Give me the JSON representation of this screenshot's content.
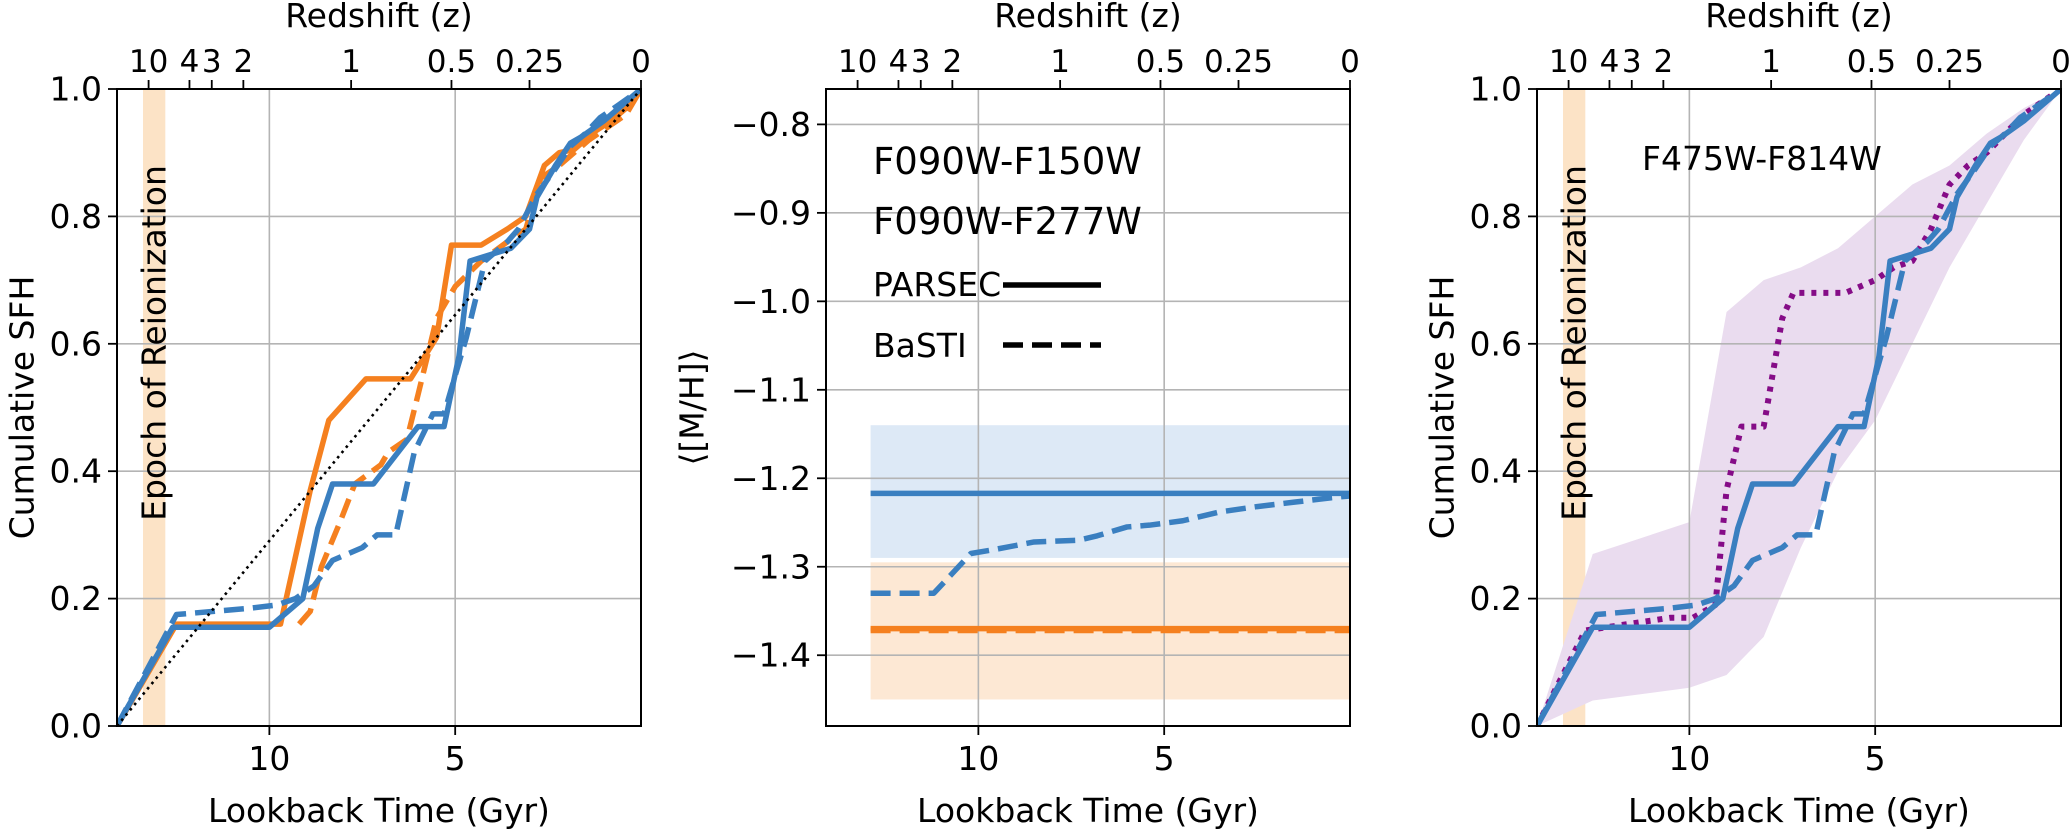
{
  "colors": {
    "blue": "#3a7fc0",
    "orange": "#f5801f",
    "purple": "#850c87",
    "reion": "#fce3c6",
    "blue_band": "#dde9f6",
    "orange_band": "#fde8d4",
    "purple_band": "#eadcef",
    "grid": "#b4b4b4"
  },
  "chart_data": [
    {
      "type": "line",
      "xlabel": "Lookback Time (Gyr)",
      "ylabel": "Cumulative SFH",
      "top_axis_label": "Redshift (z)",
      "xlim": [
        14.1,
        0
      ],
      "ylim": [
        0,
        1
      ],
      "x_ticks": [
        10,
        5
      ],
      "y_ticks": [
        0.0,
        0.2,
        0.4,
        0.6,
        0.8,
        1.0
      ],
      "top_ticks": [
        {
          "label": "10",
          "t": 13.25
        },
        {
          "label": "4",
          "t": 12.15
        },
        {
          "label": "3",
          "t": 11.55
        },
        {
          "label": "2",
          "t": 10.7
        },
        {
          "label": "1",
          "t": 7.8
        },
        {
          "label": "0.5",
          "t": 5.1
        },
        {
          "label": "0.25",
          "t": 3.0
        },
        {
          "label": "0",
          "t": 0
        }
      ],
      "annotation": {
        "text": "Epoch of Reionization",
        "t_range": [
          13.4,
          12.8
        ]
      },
      "series": [
        {
          "color_key": "orange",
          "style": "solid",
          "x": [
            14.1,
            12.9,
            12.5,
            10.3,
            9.7,
            8.9,
            8.4,
            7.4,
            6.2,
            5.5,
            5.1,
            4.3,
            3.6,
            3.1,
            2.6,
            2.2,
            1.8,
            1.2,
            0.8,
            0.4,
            0
          ],
          "y": [
            0.0,
            0.12,
            0.16,
            0.16,
            0.16,
            0.37,
            0.48,
            0.545,
            0.545,
            0.61,
            0.755,
            0.755,
            0.78,
            0.8,
            0.88,
            0.9,
            0.905,
            0.935,
            0.95,
            0.97,
            1.0
          ]
        },
        {
          "color_key": "orange",
          "style": "dashed",
          "x": [
            9.2,
            8.9,
            8.6,
            8.1,
            7.7,
            7.0,
            6.8,
            6.3,
            6.0,
            5.5,
            5.0,
            4.3,
            3.6,
            3.1,
            2.7,
            2.2,
            1.8,
            1.4,
            0.9,
            0.4,
            0
          ],
          "y": [
            0.16,
            0.18,
            0.25,
            0.32,
            0.38,
            0.41,
            0.43,
            0.45,
            0.52,
            0.64,
            0.69,
            0.73,
            0.76,
            0.78,
            0.86,
            0.88,
            0.9,
            0.92,
            0.94,
            0.96,
            1.0
          ]
        },
        {
          "color_key": "blue",
          "style": "solid",
          "x": [
            14.1,
            12.6,
            10.0,
            9.1,
            8.7,
            8.3,
            7.2,
            6.8,
            6.0,
            5.3,
            4.9,
            4.6,
            3.5,
            3.0,
            2.8,
            2.3,
            1.9,
            1.6,
            1.0,
            0.6,
            0
          ],
          "y": [
            0.0,
            0.155,
            0.155,
            0.2,
            0.31,
            0.38,
            0.38,
            0.41,
            0.47,
            0.47,
            0.58,
            0.73,
            0.75,
            0.78,
            0.83,
            0.88,
            0.915,
            0.925,
            0.95,
            0.97,
            1.0
          ]
        },
        {
          "color_key": "blue",
          "style": "dashed",
          "x": [
            14.1,
            12.5,
            10.5,
            9.8,
            9.3,
            8.8,
            8.3,
            7.5,
            7.1,
            6.6,
            6.1,
            5.6,
            5.3,
            4.7,
            4.2,
            3.6,
            3.3,
            2.8,
            2.3,
            1.9,
            1.5,
            1.1,
            0.6,
            0
          ],
          "y": [
            0.0,
            0.175,
            0.185,
            0.19,
            0.2,
            0.22,
            0.26,
            0.28,
            0.3,
            0.3,
            0.43,
            0.49,
            0.49,
            0.61,
            0.73,
            0.76,
            0.78,
            0.835,
            0.875,
            0.91,
            0.93,
            0.955,
            0.975,
            1.0
          ]
        },
        {
          "color_key": "black",
          "style": "dotted",
          "x": [
            14.1,
            0
          ],
          "y": [
            0.0,
            1.0
          ]
        }
      ]
    },
    {
      "type": "line",
      "xlabel": "Lookback Time (Gyr)",
      "ylabel": "⟨[M/H]⟩",
      "top_axis_label": "Redshift (z)",
      "xlim": [
        14.1,
        0
      ],
      "ylim": [
        -1.48,
        -0.76
      ],
      "x_ticks": [
        10,
        5
      ],
      "y_ticks": [
        -0.8,
        -0.9,
        -1.0,
        -1.1,
        -1.2,
        -1.3,
        -1.4
      ],
      "top_ticks": [
        {
          "label": "10",
          "t": 13.25
        },
        {
          "label": "4",
          "t": 12.15
        },
        {
          "label": "3",
          "t": 11.55
        },
        {
          "label": "2",
          "t": 10.7
        },
        {
          "label": "1",
          "t": 7.8
        },
        {
          "label": "0.5",
          "t": 5.1
        },
        {
          "label": "0.25",
          "t": 3.0
        },
        {
          "label": "0",
          "t": 0
        }
      ],
      "legend": [
        {
          "text": "F090W-F150W",
          "color_key": "blue"
        },
        {
          "text": "F090W-F277W",
          "color_key": "orange"
        },
        {
          "text": "PARSEC",
          "line": "solid"
        },
        {
          "text": "BaSTI",
          "line": "dashed"
        }
      ],
      "bands": [
        {
          "color_key": "blue_band",
          "x": [
            12.9,
            0
          ],
          "y_range": [
            -1.29,
            -1.14
          ]
        },
        {
          "color_key": "orange_band",
          "x": [
            12.9,
            0
          ],
          "y_range": [
            -1.45,
            -1.295
          ]
        }
      ],
      "series": [
        {
          "color_key": "blue",
          "style": "solid",
          "x": [
            12.9,
            0
          ],
          "y": [
            -1.217,
            -1.217
          ]
        },
        {
          "color_key": "blue",
          "style": "dashed",
          "x": [
            12.9,
            11.2,
            10.2,
            9.5,
            8.5,
            7.3,
            6.8,
            6.0,
            5.4,
            4.5,
            3.5,
            2.5,
            1.5,
            0.5,
            0
          ],
          "y": [
            -1.33,
            -1.33,
            -1.285,
            -1.28,
            -1.272,
            -1.27,
            -1.265,
            -1.255,
            -1.253,
            -1.248,
            -1.238,
            -1.232,
            -1.227,
            -1.222,
            -1.22
          ]
        },
        {
          "color_key": "orange",
          "style": "solid",
          "x": [
            12.9,
            0
          ],
          "y": [
            -1.37,
            -1.37
          ]
        },
        {
          "color_key": "orange",
          "style": "dashed",
          "x": [
            12.9,
            0
          ],
          "y": [
            -1.372,
            -1.372
          ]
        }
      ]
    },
    {
      "type": "line",
      "xlabel": "Lookback Time (Gyr)",
      "ylabel": "Cumulative SFH",
      "top_axis_label": "Redshift (z)",
      "xlim": [
        14.1,
        0
      ],
      "ylim": [
        0,
        1
      ],
      "x_ticks": [
        10,
        5
      ],
      "y_ticks": [
        0.0,
        0.2,
        0.4,
        0.6,
        0.8,
        1.0
      ],
      "top_ticks": [
        {
          "label": "10",
          "t": 13.25
        },
        {
          "label": "4",
          "t": 12.15
        },
        {
          "label": "3",
          "t": 11.55
        },
        {
          "label": "2",
          "t": 10.7
        },
        {
          "label": "1",
          "t": 7.8
        },
        {
          "label": "0.5",
          "t": 5.1
        },
        {
          "label": "0.25",
          "t": 3.0
        },
        {
          "label": "0",
          "t": 0
        }
      ],
      "annotation": {
        "text": "Epoch of Reionization",
        "t_range": [
          13.4,
          12.8
        ]
      },
      "legend": [
        {
          "text": "F475W-F814W",
          "color_key": "purple"
        }
      ],
      "band": {
        "color_key": "purple_band",
        "x": [
          14.1,
          12.6,
          10.0,
          9.0,
          8.0,
          7.0,
          6.0,
          5.0,
          4.0,
          3.0,
          2.0,
          1.0,
          0
        ],
        "upper": [
          0.0,
          0.27,
          0.32,
          0.65,
          0.7,
          0.72,
          0.75,
          0.8,
          0.85,
          0.88,
          0.93,
          0.97,
          1.0
        ],
        "lower": [
          0.0,
          0.04,
          0.06,
          0.08,
          0.14,
          0.28,
          0.4,
          0.48,
          0.6,
          0.72,
          0.82,
          0.92,
          1.0
        ]
      },
      "series": [
        {
          "color_key": "purple",
          "style": "dotted",
          "x": [
            14.1,
            12.8,
            10.5,
            9.9,
            9.3,
            9.0,
            8.6,
            8.0,
            7.5,
            7.2,
            6.5,
            5.8,
            5.0,
            4.5,
            4.0,
            3.5,
            3.0,
            2.5,
            2.0,
            1.5,
            1.0,
            0.5,
            0
          ],
          "y": [
            0.0,
            0.15,
            0.17,
            0.17,
            0.19,
            0.37,
            0.47,
            0.47,
            0.64,
            0.68,
            0.68,
            0.68,
            0.7,
            0.72,
            0.73,
            0.78,
            0.85,
            0.88,
            0.9,
            0.93,
            0.96,
            0.98,
            1.0
          ]
        },
        {
          "color_key": "blue",
          "style": "solid",
          "x": [
            14.1,
            12.6,
            10.0,
            9.1,
            8.7,
            8.3,
            7.2,
            6.8,
            6.0,
            5.3,
            4.9,
            4.6,
            3.5,
            3.0,
            2.8,
            2.3,
            1.9,
            1.6,
            1.0,
            0.6,
            0
          ],
          "y": [
            0.0,
            0.155,
            0.155,
            0.2,
            0.31,
            0.38,
            0.38,
            0.41,
            0.47,
            0.47,
            0.58,
            0.73,
            0.75,
            0.78,
            0.83,
            0.88,
            0.915,
            0.925,
            0.95,
            0.97,
            1.0
          ]
        },
        {
          "color_key": "blue",
          "style": "dashed",
          "x": [
            14.1,
            12.5,
            10.5,
            9.8,
            9.3,
            8.8,
            8.3,
            7.5,
            7.1,
            6.6,
            6.1,
            5.6,
            5.3,
            4.7,
            4.2,
            3.6,
            3.3,
            2.8,
            2.3,
            1.9,
            1.5,
            1.1,
            0.6,
            0
          ],
          "y": [
            0.0,
            0.175,
            0.185,
            0.19,
            0.2,
            0.22,
            0.26,
            0.28,
            0.3,
            0.3,
            0.43,
            0.49,
            0.49,
            0.61,
            0.73,
            0.76,
            0.78,
            0.835,
            0.875,
            0.91,
            0.93,
            0.955,
            0.975,
            1.0
          ]
        }
      ]
    }
  ]
}
